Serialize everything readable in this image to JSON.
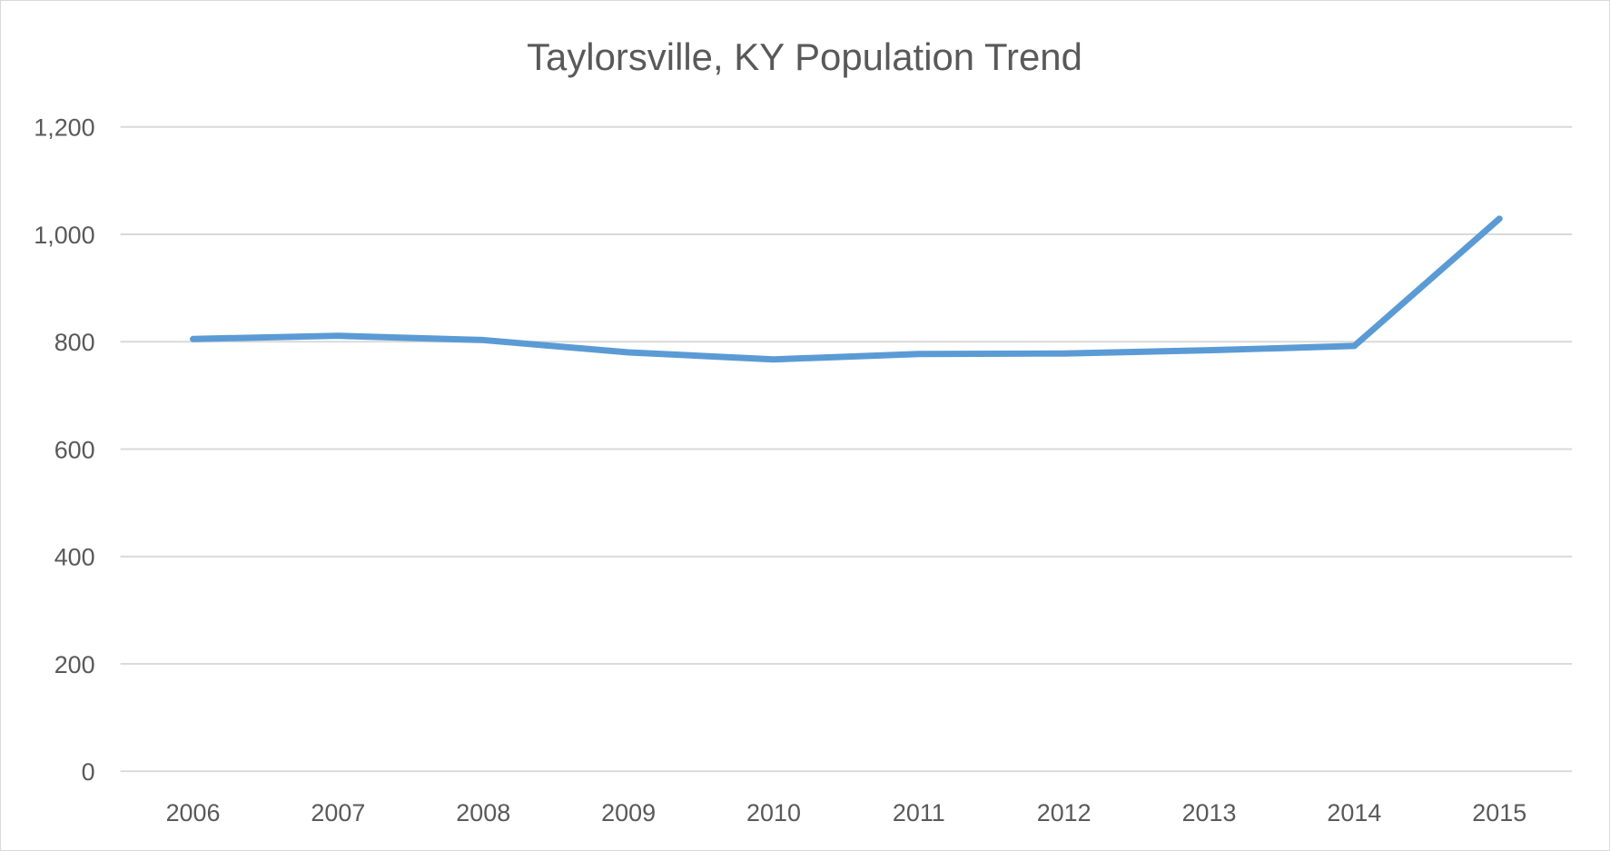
{
  "chart_data": {
    "type": "line",
    "title": "Taylorsville, KY Population Trend",
    "xlabel": "",
    "ylabel": "",
    "categories": [
      "2006",
      "2007",
      "2008",
      "2009",
      "2010",
      "2011",
      "2012",
      "2013",
      "2014",
      "2015"
    ],
    "series": [
      {
        "values": [
          805,
          811,
          803,
          780,
          767,
          777,
          778,
          784,
          792,
          1029
        ]
      }
    ],
    "ylim": [
      0,
      1200
    ],
    "yticks": [
      0,
      200,
      400,
      600,
      800,
      1000,
      1200
    ],
    "ytick_labels": [
      "0",
      "200",
      "400",
      "600",
      "800",
      "1,000",
      "1,200"
    ],
    "grid": true,
    "legend": "none",
    "colors": {
      "line": "#5B9BD5",
      "grid": "#D9D9D9",
      "text": "#595959"
    }
  }
}
